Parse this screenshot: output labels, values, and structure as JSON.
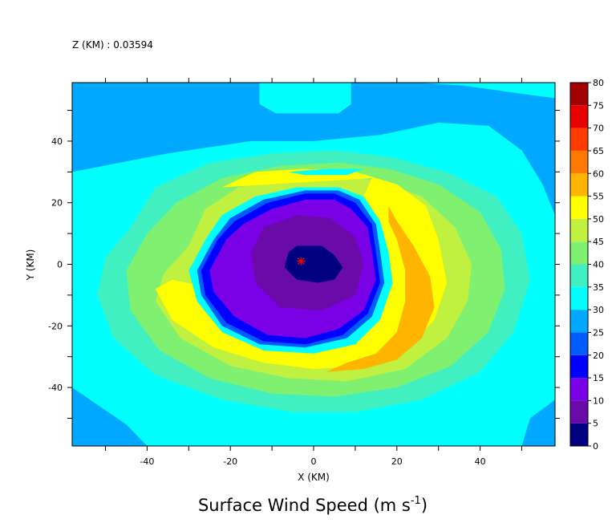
{
  "chart_data": {
    "type": "contour",
    "header": "Z (KM) : 0.03594",
    "title": "Surface Wind Speed (m s",
    "title_exponent": "-1",
    "title_close": ")",
    "xlabel": "X (KM)",
    "ylabel": "Y (KM)",
    "xlim": [
      -58,
      58
    ],
    "ylim": [
      -59,
      59
    ],
    "x_ticks": [
      -40,
      -20,
      0,
      20,
      40
    ],
    "y_ticks": [
      -40,
      -20,
      0,
      20,
      40
    ],
    "x_tick_labels": [
      "-40",
      "-20",
      "0",
      "20",
      "40"
    ],
    "y_tick_labels": [
      "-40",
      "-20",
      "0",
      "20",
      "40"
    ],
    "colorbar": {
      "levels": [
        0,
        5,
        10,
        15,
        20,
        25,
        30,
        35,
        40,
        45,
        50,
        55,
        60,
        65,
        70,
        75,
        80
      ],
      "labels": [
        "0",
        "5",
        "10",
        "15",
        "20",
        "25",
        "30",
        "35",
        "40",
        "45",
        "50",
        "55",
        "60",
        "65",
        "70",
        "75",
        "80"
      ],
      "colors": [
        "#000080",
        "#6a0aa8",
        "#7a00e6",
        "#0000ff",
        "#005cff",
        "#00a8ff",
        "#00ffff",
        "#40f0c0",
        "#80f070",
        "#c0f040",
        "#ffff00",
        "#ffb400",
        "#ff7800",
        "#ff3c00",
        "#e60000",
        "#a00000"
      ]
    },
    "storm_center_marker": {
      "x": -3,
      "y": 1,
      "symbol": "*",
      "color": "#ff0000"
    },
    "contour_regions": [
      {
        "level": 25,
        "points": [
          [
            -58,
            59
          ],
          [
            -13,
            59
          ],
          [
            -13,
            52
          ],
          [
            -9,
            49
          ],
          [
            6,
            49
          ],
          [
            9,
            52
          ],
          [
            9,
            59
          ],
          [
            25,
            59
          ],
          [
            36,
            58
          ],
          [
            52,
            55
          ],
          [
            58,
            54
          ],
          [
            58,
            16
          ],
          [
            55,
            26
          ],
          [
            50,
            37
          ],
          [
            42,
            45
          ],
          [
            30,
            46
          ],
          [
            16,
            42
          ],
          [
            0,
            40
          ],
          [
            -15,
            40
          ],
          [
            -35,
            36
          ],
          [
            -58,
            30
          ]
        ]
      },
      {
        "level": 25,
        "points": [
          [
            -58,
            -40
          ],
          [
            -45,
            -52
          ],
          [
            -40,
            -59
          ],
          [
            -58,
            -59
          ]
        ]
      },
      {
        "level": 25,
        "points": [
          [
            50,
            -59
          ],
          [
            58,
            -59
          ],
          [
            58,
            -44
          ],
          [
            52,
            -50
          ]
        ]
      },
      {
        "level": 35,
        "points": [
          [
            -44,
            12
          ],
          [
            -38,
            25
          ],
          [
            -25,
            33
          ],
          [
            -10,
            36
          ],
          [
            5,
            37
          ],
          [
            18,
            35
          ],
          [
            32,
            30
          ],
          [
            44,
            22
          ],
          [
            50,
            10
          ],
          [
            52,
            -5
          ],
          [
            48,
            -22
          ],
          [
            40,
            -35
          ],
          [
            26,
            -44
          ],
          [
            10,
            -48
          ],
          [
            -5,
            -48
          ],
          [
            -22,
            -44
          ],
          [
            -38,
            -36
          ],
          [
            -48,
            -24
          ],
          [
            -52,
            -10
          ],
          [
            -50,
            2
          ]
        ]
      },
      {
        "level": 40,
        "points": [
          [
            -40,
            10
          ],
          [
            -33,
            20
          ],
          [
            -22,
            28
          ],
          [
            -8,
            32
          ],
          [
            6,
            33
          ],
          [
            18,
            31
          ],
          [
            30,
            26
          ],
          [
            40,
            17
          ],
          [
            45,
            5
          ],
          [
            46,
            -8
          ],
          [
            42,
            -22
          ],
          [
            33,
            -33
          ],
          [
            20,
            -40
          ],
          [
            5,
            -43
          ],
          [
            -10,
            -42
          ],
          [
            -25,
            -37
          ],
          [
            -37,
            -28
          ],
          [
            -44,
            -15
          ],
          [
            -45,
            -2
          ]
        ]
      },
      {
        "level": 45,
        "points": [
          [
            -30,
            6
          ],
          [
            -26,
            18
          ],
          [
            -18,
            25
          ],
          [
            -6,
            28
          ],
          [
            6,
            29
          ],
          [
            16,
            27
          ],
          [
            26,
            22
          ],
          [
            34,
            12
          ],
          [
            38,
            0
          ],
          [
            37,
            -12
          ],
          [
            32,
            -24
          ],
          [
            22,
            -34
          ],
          [
            8,
            -38
          ],
          [
            -6,
            -37
          ],
          [
            -20,
            -33
          ],
          [
            -32,
            -24
          ],
          [
            -38,
            -12
          ],
          [
            -36,
            -3
          ]
        ]
      },
      {
        "level": 50,
        "points": [
          [
            -22,
            25
          ],
          [
            -14,
            30
          ],
          [
            -2,
            31
          ],
          [
            10,
            30
          ],
          [
            20,
            26
          ],
          [
            27,
            19
          ],
          [
            30,
            8
          ],
          [
            32,
            -6
          ],
          [
            29,
            -18
          ],
          [
            22,
            -28
          ],
          [
            12,
            -33
          ],
          [
            0,
            -34
          ],
          [
            -12,
            -32
          ],
          [
            -24,
            -27
          ],
          [
            -34,
            -18
          ],
          [
            -38,
            -8
          ],
          [
            -34,
            -5
          ],
          [
            -24,
            -8
          ],
          [
            -14,
            -8
          ],
          [
            -18,
            4
          ],
          [
            -14,
            16
          ],
          [
            -8,
            22
          ],
          [
            2,
            24
          ],
          [
            12,
            22
          ],
          [
            14,
            28
          ]
        ]
      },
      {
        "level": 55,
        "points": [
          [
            18,
            19
          ],
          [
            20,
            14
          ],
          [
            24,
            6
          ],
          [
            28,
            -4
          ],
          [
            29,
            -14
          ],
          [
            26,
            -24
          ],
          [
            20,
            -31
          ],
          [
            12,
            -34
          ],
          [
            3,
            -35
          ],
          [
            8,
            -32
          ],
          [
            15,
            -29
          ],
          [
            20,
            -22
          ],
          [
            22,
            -12
          ],
          [
            22,
            -2
          ],
          [
            20,
            8
          ],
          [
            18,
            14
          ]
        ]
      },
      {
        "level": 30,
        "points": [
          [
            -6,
            30
          ],
          [
            4,
            31
          ],
          [
            12,
            31
          ],
          [
            8,
            29
          ],
          [
            -2,
            29
          ]
        ]
      },
      {
        "level": 30,
        "points": [
          [
            -26,
            8
          ],
          [
            -22,
            16
          ],
          [
            -14,
            22
          ],
          [
            -4,
            25
          ],
          [
            6,
            25
          ],
          [
            12,
            22
          ],
          [
            16,
            14
          ],
          [
            18,
            4
          ],
          [
            19,
            -6
          ],
          [
            16,
            -18
          ],
          [
            10,
            -26
          ],
          [
            0,
            -29
          ],
          [
            -12,
            -28
          ],
          [
            -22,
            -22
          ],
          [
            -28,
            -12
          ],
          [
            -30,
            -2
          ]
        ]
      },
      {
        "level": 20,
        "points": [
          [
            -24,
            8
          ],
          [
            -20,
            15
          ],
          [
            -12,
            21
          ],
          [
            -2,
            24
          ],
          [
            6,
            24
          ],
          [
            11,
            21
          ],
          [
            15,
            13
          ],
          [
            16,
            4
          ],
          [
            17,
            -6
          ],
          [
            14,
            -17
          ],
          [
            8,
            -24
          ],
          [
            -2,
            -27
          ],
          [
            -13,
            -26
          ],
          [
            -22,
            -20
          ],
          [
            -27,
            -10
          ],
          [
            -28,
            -2
          ]
        ]
      },
      {
        "level": 15,
        "points": [
          [
            -23,
            8
          ],
          [
            -19,
            14
          ],
          [
            -11,
            20
          ],
          [
            -2,
            23
          ],
          [
            5,
            23
          ],
          [
            10,
            20
          ],
          [
            14,
            13
          ],
          [
            15,
            4
          ],
          [
            16,
            -6
          ],
          [
            13,
            -16
          ],
          [
            7,
            -23
          ],
          [
            -2,
            -26
          ],
          [
            -12,
            -25
          ],
          [
            -21,
            -19
          ],
          [
            -26,
            -10
          ],
          [
            -27,
            -2
          ]
        ]
      },
      {
        "level": 10,
        "points": [
          [
            -21,
            8
          ],
          [
            -17,
            13
          ],
          [
            -10,
            18
          ],
          [
            -2,
            21
          ],
          [
            5,
            21
          ],
          [
            9,
            18
          ],
          [
            13,
            12
          ],
          [
            14,
            4
          ],
          [
            15,
            -5
          ],
          [
            12,
            -15
          ],
          [
            6,
            -21
          ],
          [
            -2,
            -24
          ],
          [
            -11,
            -23
          ],
          [
            -19,
            -17
          ],
          [
            -24,
            -9
          ],
          [
            -25,
            -2
          ]
        ]
      },
      {
        "level": 5,
        "points": [
          [
            -15,
            4
          ],
          [
            -12,
            12
          ],
          [
            -4,
            16
          ],
          [
            4,
            15
          ],
          [
            10,
            9
          ],
          [
            12,
            0
          ],
          [
            10,
            -10
          ],
          [
            2,
            -15
          ],
          [
            -8,
            -14
          ],
          [
            -14,
            -6
          ]
        ]
      },
      {
        "level": 0,
        "points": [
          [
            -6,
            4
          ],
          [
            -4,
            6
          ],
          [
            2,
            6
          ],
          [
            5,
            3
          ],
          [
            7,
            -1
          ],
          [
            5,
            -5
          ],
          [
            1,
            -6
          ],
          [
            -4,
            -5
          ],
          [
            -7,
            -1
          ]
        ]
      }
    ]
  }
}
